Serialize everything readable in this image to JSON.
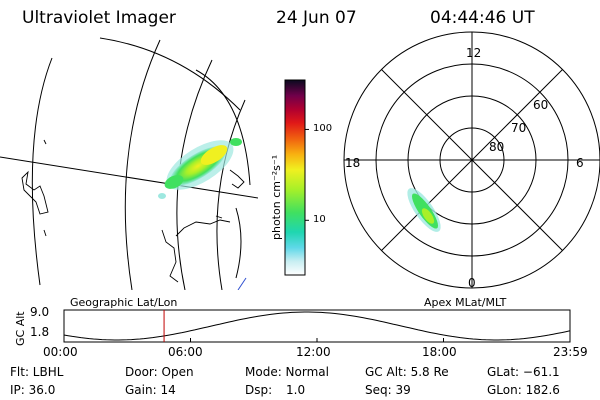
{
  "header": {
    "title": "Ultraviolet Imager",
    "date": "24 Jun 07",
    "time": "04:44:46 UT"
  },
  "colorbar": {
    "label": "photon cm⁻²s⁻¹",
    "ticks": [
      {
        "label": "100",
        "value": 100
      },
      {
        "label": "10",
        "value": 10
      }
    ],
    "range": [
      2.5,
      350
    ],
    "scale": "log"
  },
  "polar_plot": {
    "mlt_labels": {
      "top": "12",
      "right": "6",
      "bottom": "0",
      "left": "18"
    },
    "lat_labels": [
      "60",
      "70",
      "80"
    ]
  },
  "orbit_plot": {
    "left_title": "Geographic Lat/Lon",
    "right_title": "Apex MLat/MLT",
    "ylabel": "GC Alt",
    "ytick_labels": [
      "9.0",
      "1.8"
    ],
    "xtick_labels": [
      "00:00",
      "06:00",
      "12:00",
      "18:00",
      "23:59"
    ],
    "marker_time": "04:44:46"
  },
  "footer": {
    "flt": "Flt: LBHL",
    "ip": "IP: 36.0",
    "door": "Door: Open",
    "gain": "Gain: 14",
    "mode": "Mode: Normal",
    "dsp_label": "Dsp:",
    "dsp_value": "1.0",
    "gcalt": "GC Alt: 5.8 Re",
    "seq": "Seq: 39",
    "glat": "GLat: −61.1",
    "glon": "GLon: 182.6"
  }
}
